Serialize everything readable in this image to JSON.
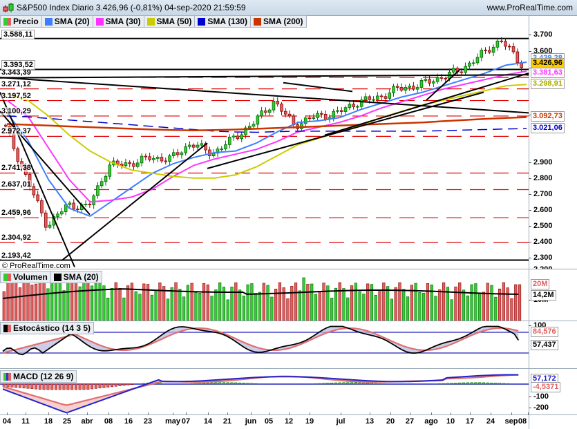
{
  "header": {
    "title": "S&P500 Index Diario 3.426,96 (-0,81%) 04-sep-2020 21:59:59",
    "website": "www.ProRealTime.com"
  },
  "price_legend": [
    {
      "label": "Precio",
      "color": "split"
    },
    {
      "label": "SMA (20)",
      "color": "#3f7fff"
    },
    {
      "label": "SMA (30)",
      "color": "#ff33ff"
    },
    {
      "label": "SMA (50)",
      "color": "#cccc00"
    },
    {
      "label": "SMA (130)",
      "color": "#0000cc"
    },
    {
      "label": "SMA (200)",
      "color": "#cc3300"
    }
  ],
  "price_axis": {
    "ticks": [
      "3.700",
      "3.600",
      "3.500",
      "3.200",
      "2.900",
      "2.800",
      "2.700",
      "2.600",
      "2.500",
      "2.400",
      "2.300",
      "2.200"
    ],
    "current_labels": [
      {
        "value": "3.426,96",
        "color": "#000000",
        "bg": "#ffcc00"
      },
      {
        "value": "3.381,63",
        "color": "#ff33ff",
        "bg": "#ffffff"
      },
      {
        "value": "3.298,91",
        "color": "#aaaa00",
        "bg": "#ffffff"
      },
      {
        "value": "3.092,73",
        "color": "#cc3300",
        "bg": "#ffffff"
      },
      {
        "value": "3.021,06",
        "color": "#0000cc",
        "bg": "#ffffff"
      },
      {
        "value": "3.439,28",
        "color": "#3f7fff",
        "bg": "#ffffff"
      }
    ]
  },
  "horizontal_levels": [
    "3.588,11",
    "3.393,52",
    "3.343,39",
    "3.271,12",
    "3.197,52",
    "3.100,29",
    "2.972,37",
    "2.741,38",
    "2.637,01",
    "2.459,96",
    "2.304,92",
    "2.193,42"
  ],
  "copyright": "© ProRealTime.com",
  "volume": {
    "legend": [
      {
        "label": "Volumen"
      },
      {
        "label": "SMA (20)"
      }
    ],
    "axis_labels": [
      {
        "value": "20M",
        "color": "#e06060"
      },
      {
        "value": "14,2M",
        "color": "#000000"
      },
      {
        "value": "10M",
        "color": "#000000"
      }
    ]
  },
  "stochastic": {
    "legend": "Estocástico (14 3 5)",
    "axis_labels": [
      {
        "value": "100",
        "color": "#000000"
      },
      {
        "value": "84,576",
        "color": "#e06060"
      },
      {
        "value": "57,437",
        "color": "#000000"
      }
    ]
  },
  "macd": {
    "legend": "MACD (12 26 9)",
    "axis_labels": [
      {
        "value": "57,172",
        "color": "#2222cc"
      },
      {
        "value": "-4,5371",
        "color": "#e06060"
      },
      {
        "value": "-100",
        "color": "#000000"
      },
      {
        "value": "-200",
        "color": "#000000"
      }
    ]
  },
  "x_axis": [
    "04",
    "11",
    "18",
    "25",
    "abr",
    "08",
    "16",
    "23",
    "may",
    "07",
    "14",
    "21",
    "jun",
    "05",
    "12",
    "19",
    "jul",
    "13",
    "20",
    "27",
    "ago",
    "10",
    "17",
    "24",
    "sep",
    "08"
  ],
  "chart_data": {
    "type": "candlestick",
    "title": "S&P500 Index Diario 3.426,96 (-0,81%) 04-sep-2020 21:59:59",
    "xlabel": "",
    "ylabel": "",
    "ylim": [
      2150,
      3720
    ],
    "x": [
      "mar-04",
      "mar-11",
      "mar-18",
      "mar-25",
      "abr-01",
      "abr-08",
      "abr-16",
      "abr-23",
      "may-01",
      "may-07",
      "may-14",
      "may-21",
      "jun-01",
      "jun-05",
      "jun-12",
      "jun-19",
      "jul-01",
      "jul-13",
      "jul-20",
      "jul-27",
      "ago-03",
      "ago-10",
      "ago-17",
      "ago-24",
      "sep-01",
      "sep-04"
    ],
    "series": [
      {
        "name": "Precio (close, weekly approx)",
        "values": [
          3023,
          2711,
          2409,
          2541,
          2527,
          2790,
          2800,
          2837,
          2831,
          2930,
          2863,
          2955,
          3055,
          3193,
          3041,
          3098,
          3115,
          3185,
          3215,
          3271,
          3294,
          3340,
          3386,
          3480,
          3580,
          3427
        ]
      },
      {
        "name": "SMA (20)",
        "values": [
          3120,
          2950,
          2700,
          2520,
          2470,
          2560,
          2650,
          2740,
          2800,
          2840,
          2870,
          2880,
          2930,
          3000,
          3060,
          3070,
          3090,
          3140,
          3180,
          3220,
          3250,
          3290,
          3330,
          3370,
          3420,
          3439
        ]
      },
      {
        "name": "SMA (30)",
        "values": [
          3200,
          3100,
          2900,
          2700,
          2560,
          2570,
          2590,
          2640,
          2720,
          2790,
          2830,
          2860,
          2890,
          2940,
          3000,
          3030,
          3060,
          3100,
          3150,
          3190,
          3230,
          3270,
          3300,
          3330,
          3360,
          3382
        ]
      },
      {
        "name": "SMA (50)",
        "values": [
          3240,
          3200,
          3100,
          2980,
          2880,
          2810,
          2760,
          2740,
          2720,
          2710,
          2710,
          2730,
          2780,
          2850,
          2920,
          2960,
          3000,
          3040,
          3090,
          3130,
          3170,
          3200,
          3230,
          3260,
          3290,
          3299
        ]
      },
      {
        "name": "SMA (130)",
        "values": [
          3100,
          3095,
          3085,
          3075,
          3065,
          3055,
          3045,
          3035,
          3025,
          3015,
          3005,
          3000,
          2998,
          3002,
          3005,
          3005,
          3005,
          3005,
          3005,
          3005,
          3005,
          3008,
          3012,
          3015,
          3019,
          3021
        ]
      },
      {
        "name": "SMA (200)",
        "values": [
          3050,
          3045,
          3040,
          3035,
          3030,
          3025,
          3020,
          3015,
          3012,
          3010,
          3012,
          3015,
          3020,
          3025,
          3030,
          3035,
          3040,
          3045,
          3050,
          3055,
          3060,
          3068,
          3075,
          3082,
          3088,
          3093
        ]
      }
    ],
    "horizontal_levels": [
      3588.11,
      3393.52,
      3343.39,
      3271.12,
      3197.52,
      3100.29,
      2972.37,
      2741.38,
      2637.01,
      2459.96,
      2304.92,
      2193.42
    ],
    "last_values": {
      "Precio": 3426.96,
      "SMA (20)": 3439.28,
      "SMA (30)": 3381.63,
      "SMA (50)": 3298.91,
      "SMA (130)": 3021.06,
      "SMA (200)": 3092.73
    },
    "sub_panels": [
      {
        "name": "Volumen",
        "last": "20M",
        "sma20": "14,2M",
        "ticks": [
          "10M",
          "20M"
        ]
      },
      {
        "name": "Estocástico (14 3 5)",
        "k": 57.437,
        "d": 84.576,
        "levels": [
          20,
          80
        ],
        "ticks": [
          "100"
        ]
      },
      {
        "name": "MACD (12 26 9)",
        "macd": 57.172,
        "histogram": -4.5371,
        "ticks": [
          "-100",
          "-200"
        ]
      }
    ]
  }
}
